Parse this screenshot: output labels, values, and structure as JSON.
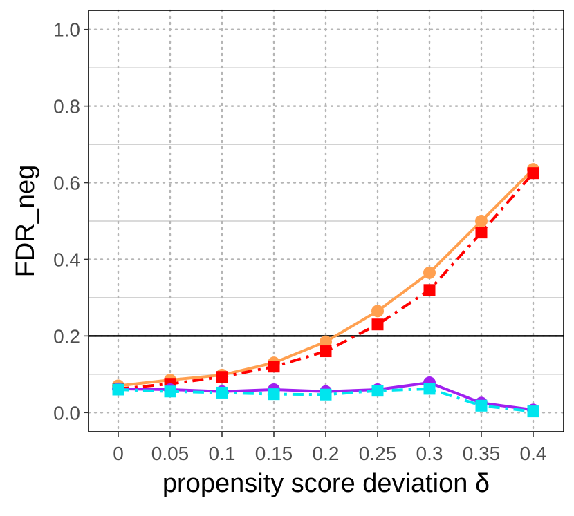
{
  "chart_data": {
    "type": "line",
    "xlabel": "propensity score deviation δ",
    "ylabel": "FDR_neg",
    "x": [
      0,
      0.05,
      0.1,
      0.15,
      0.2,
      0.25,
      0.3,
      0.35,
      0.4
    ],
    "x_tick_labels": [
      "0",
      "0.05",
      "0.1",
      "0.15",
      "0.2",
      "0.25",
      "0.3",
      "0.35",
      "0.4"
    ],
    "y_ticks": [
      0.0,
      0.2,
      0.4,
      0.6,
      0.8,
      1.0
    ],
    "y_tick_labels": [
      "0.0",
      "0.2",
      "0.4",
      "0.6",
      "0.8",
      "1.0"
    ],
    "ylim": [
      -0.05,
      1.05
    ],
    "reference_line": 0.2,
    "grid": "dotted",
    "series": [
      {
        "color": "#FFA050",
        "marker": "circle",
        "dash": "solid",
        "values": [
          0.07,
          0.085,
          0.098,
          0.13,
          0.185,
          0.265,
          0.365,
          0.5,
          0.635
        ]
      },
      {
        "color": "#FF0000",
        "marker": "square",
        "dash": "dashdot",
        "values": [
          0.062,
          0.075,
          0.093,
          0.12,
          0.16,
          0.23,
          0.32,
          0.47,
          0.625
        ]
      },
      {
        "color": "#A020F0",
        "marker": "circle",
        "dash": "solid",
        "values": [
          0.062,
          0.06,
          0.055,
          0.06,
          0.055,
          0.06,
          0.078,
          0.025,
          0.007
        ]
      },
      {
        "color": "#00E5EE",
        "marker": "square",
        "dash": "dashdot",
        "values": [
          0.06,
          0.055,
          0.052,
          0.048,
          0.047,
          0.057,
          0.062,
          0.018,
          0.003
        ]
      }
    ]
  }
}
